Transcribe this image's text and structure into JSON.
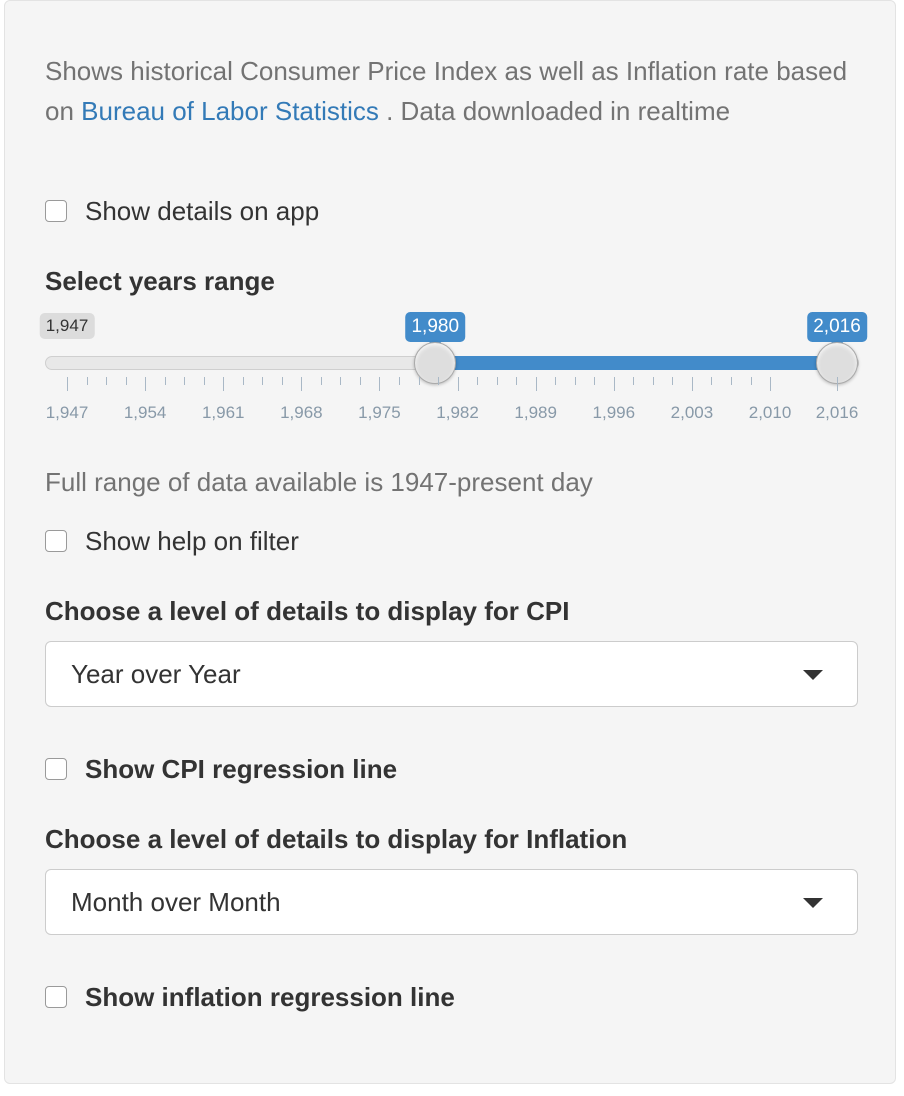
{
  "description": {
    "before_link": "Shows historical Consumer Price Index as well as Inflation rate based on ",
    "link_text": "Bureau of Labor Statistics",
    "after_link": " . Data downloaded in realtime"
  },
  "show_details": {
    "label": "Show details on app",
    "checked": false
  },
  "years_range": {
    "label": "Select years range",
    "min_label": "1,947",
    "from_label": "1,980",
    "to_label": "2,016",
    "min": 1947,
    "max": 2016,
    "from": 1980,
    "to": 2016,
    "tick_labels": [
      "1,947",
      "1,954",
      "1,961",
      "1,968",
      "1,975",
      "1,982",
      "1,989",
      "1,996",
      "2,003",
      "2,010",
      "2,016"
    ],
    "help_text": "Full range of data available is 1947-present day"
  },
  "show_help": {
    "label": "Show help on filter",
    "checked": false
  },
  "cpi": {
    "label": "Choose a level of details to display for CPI",
    "selected": "Year over Year",
    "regression_label": "Show CPI regression line",
    "regression_checked": false
  },
  "inflation": {
    "label": "Choose a level of details to display for Inflation",
    "selected": "Month over Month",
    "regression_label": "Show inflation regression line",
    "regression_checked": false
  },
  "colors": {
    "accent": "#428bca",
    "link": "#337ab7",
    "panel_bg": "#f5f5f5"
  }
}
